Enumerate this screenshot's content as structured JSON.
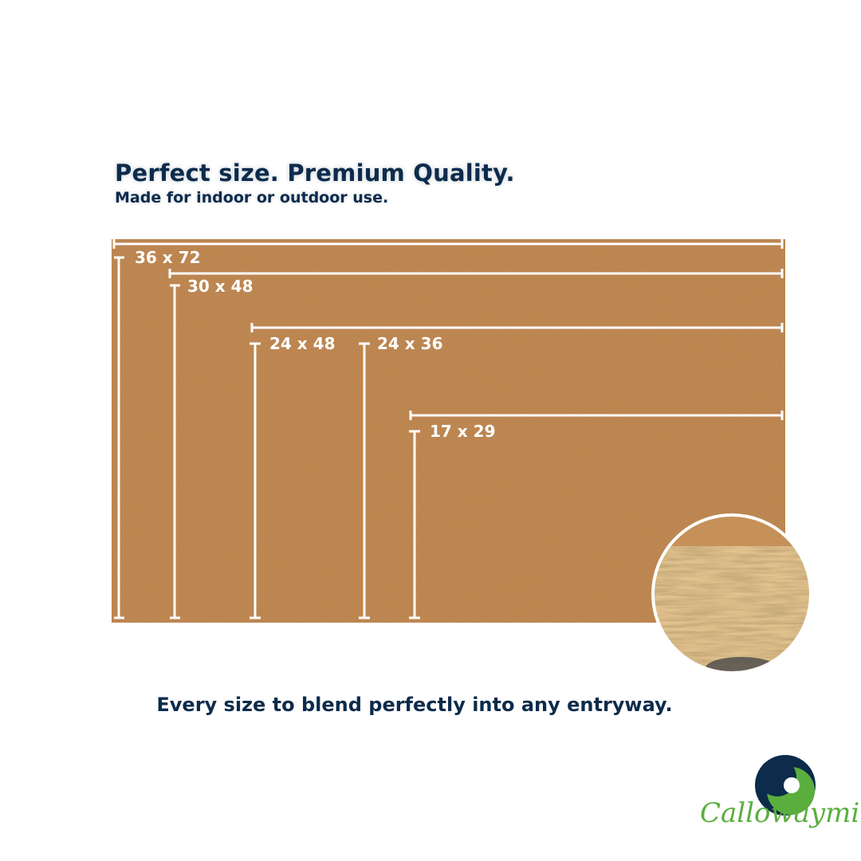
{
  "header": {
    "title": "Perfect size. Premium Quality.",
    "subtitle": "Made for indoor or outdoor use."
  },
  "sizes": [
    {
      "label": "36 x 72"
    },
    {
      "label": "30 x 48"
    },
    {
      "label": "24 x 48"
    },
    {
      "label": "24 x 36"
    },
    {
      "label": "17 x 29"
    }
  ],
  "tagline": "Every size to blend perfectly into any entryway.",
  "brand": {
    "name": "Callowaymills",
    "colors": {
      "navy": "#0d2b4b",
      "green": "#5aae3e",
      "mat": "#c68a52"
    }
  }
}
